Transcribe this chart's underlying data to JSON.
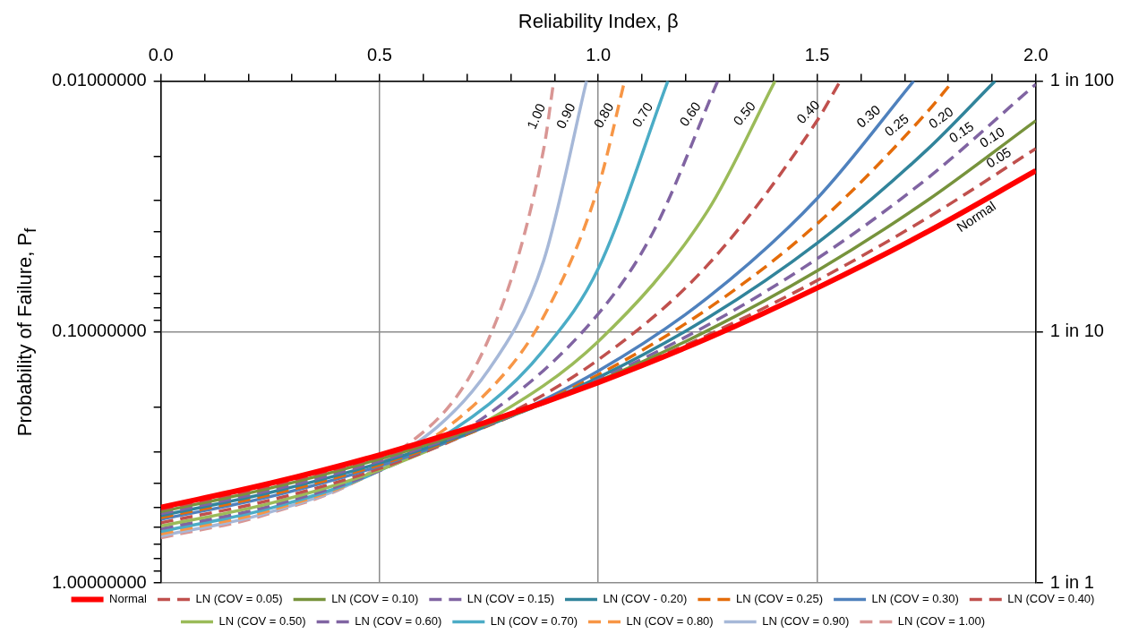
{
  "chart_data": {
    "type": "line",
    "xlabel": "Reliability Index, β",
    "ylabel": "Probability of Failure, P$_{f}$",
    "xlim": [
      0,
      2
    ],
    "xticks": [
      {
        "value": 0,
        "label": "0.0"
      },
      {
        "value": 0.1,
        "label": null
      },
      {
        "value": 0.2,
        "label": null
      },
      {
        "value": 0.3,
        "label": null
      },
      {
        "value": 0.4,
        "label": null
      },
      {
        "value": 0.5,
        "label": "0.5"
      },
      {
        "value": 0.6,
        "label": null
      },
      {
        "value": 0.7,
        "label": null
      },
      {
        "value": 0.8,
        "label": null
      },
      {
        "value": 0.9,
        "label": null
      },
      {
        "value": 1,
        "label": "1.0"
      },
      {
        "value": 1.1,
        "label": null
      },
      {
        "value": 1.2,
        "label": null
      },
      {
        "value": 1.3,
        "label": null
      },
      {
        "value": 1.4,
        "label": null
      },
      {
        "value": 1.5,
        "label": "1.5"
      },
      {
        "value": 1.6,
        "label": null
      },
      {
        "value": 1.7,
        "label": null
      },
      {
        "value": 1.8,
        "label": null
      },
      {
        "value": 1.9,
        "label": null
      },
      {
        "value": 2,
        "label": "2.0"
      }
    ],
    "ylim": [
      1,
      0.01
    ],
    "yticks": [
      {
        "value": 0.01,
        "label": "0.01000000"
      },
      {
        "value": 0.02,
        "label": null
      },
      {
        "value": 0.03,
        "label": null
      },
      {
        "value": 0.04,
        "label": null
      },
      {
        "value": 0.05,
        "label": null
      },
      {
        "value": 0.06,
        "label": null
      },
      {
        "value": 0.07,
        "label": null
      },
      {
        "value": 0.08,
        "label": null
      },
      {
        "value": 0.09,
        "label": null
      },
      {
        "value": 0.1,
        "label": "0.10000000"
      },
      {
        "value": 0.2,
        "label": null
      },
      {
        "value": 0.3,
        "label": null
      },
      {
        "value": 0.4,
        "label": null
      },
      {
        "value": 0.5,
        "label": null
      },
      {
        "value": 0.6,
        "label": null
      },
      {
        "value": 0.7,
        "label": null
      },
      {
        "value": 0.8,
        "label": null
      },
      {
        "value": 0.9,
        "label": null
      },
      {
        "value": 1,
        "label": "1.00000000"
      }
    ],
    "y2_categories": [
      "1 in 100",
      "1 in 10",
      "1 in 1"
    ],
    "log": "y",
    "grid": true,
    "legend": "bottom",
    "marker": "none",
    "annotations": [
      {
        "text": "1.00",
        "x": 0.884,
        "y": 0.0145
      },
      {
        "text": "0.90",
        "x": 0.951,
        "y": 0.0145
      },
      {
        "text": "0.80",
        "x": 1.037,
        "y": 0.0145
      },
      {
        "text": "0.70",
        "x": 1.125,
        "y": 0.0145
      },
      {
        "text": "0.60",
        "x": 1.233,
        "y": 0.0145
      },
      {
        "text": "0.50",
        "x": 1.356,
        "y": 0.0145
      },
      {
        "text": "0.40",
        "x": 1.5,
        "y": 0.0144
      },
      {
        "text": "0.30",
        "x": 1.636,
        "y": 0.0151
      },
      {
        "text": "0.25",
        "x": 1.7,
        "y": 0.0164
      },
      {
        "text": "0.20",
        "x": 1.8,
        "y": 0.0154
      },
      {
        "text": "0.15",
        "x": 1.846,
        "y": 0.0176
      },
      {
        "text": "0.10",
        "x": 1.915,
        "y": 0.0185
      },
      {
        "text": "0.05",
        "x": 1.93,
        "y": 0.0223
      },
      {
        "text": "Normal",
        "x": 1.85,
        "y": 0.032
      }
    ],
    "series": [
      {
        "name": "Normal",
        "color": "#ff0000",
        "line_style": "solid",
        "x": [
          0,
          0.25,
          0.5,
          0.75,
          1,
          1.25,
          1.5,
          1.75,
          2
        ],
        "values": [
          0.5,
          0.401,
          0.309,
          0.227,
          0.159,
          0.106,
          0.0668,
          0.0401,
          0.0228
        ]
      },
      {
        "name": "LN (COV = 0.05)",
        "color": "#c0504d",
        "line_style": "dashed",
        "x": [
          0,
          0.25,
          0.5,
          0.75,
          1,
          1.25,
          1.5,
          1.75,
          2
        ],
        "values": [
          0.51,
          0.41,
          0.315,
          0.23,
          0.158,
          0.103,
          0.0624,
          0.0353,
          0.0186
        ]
      },
      {
        "name": "LN (COV = 0.10)",
        "color": "#77933c",
        "line_style": "solid",
        "x": [
          0,
          0.25,
          0.5,
          0.75,
          1,
          1.25,
          1.5,
          1.75,
          2
        ],
        "values": [
          0.52,
          0.419,
          0.321,
          0.232,
          0.157,
          0.0987,
          0.0571,
          0.0301,
          0.0144
        ]
      },
      {
        "name": "LN (COV = 0.15)",
        "color": "#8064a2",
        "line_style": "dashed",
        "x": [
          0,
          0.25,
          0.5,
          0.75,
          1,
          1.25,
          1.5,
          1.75,
          2
        ],
        "values": [
          0.53,
          0.428,
          0.327,
          0.234,
          0.155,
          0.0939,
          0.0511,
          0.0246,
          0.0103
        ]
      },
      {
        "name": "LN (COV - 0.20)",
        "color": "#31849b",
        "line_style": "solid",
        "x": [
          0,
          0.25,
          0.5,
          0.75,
          1,
          1.25,
          1.5,
          1.75,
          1.907
        ],
        "values": [
          0.539,
          0.436,
          0.333,
          0.235,
          0.152,
          0.0879,
          0.0443,
          0.0189,
          0.01
        ]
      },
      {
        "name": "LN (COV = 0.25)",
        "color": "#e46c0a",
        "line_style": "dashed",
        "x": [
          0,
          0.25,
          0.5,
          0.75,
          1,
          1.25,
          1.5,
          1.75,
          1.811
        ],
        "values": [
          0.549,
          0.445,
          0.338,
          0.236,
          0.148,
          0.0809,
          0.0371,
          0.0134,
          0.01
        ]
      },
      {
        "name": "LN (COV = 0.30)",
        "color": "#4f81bd",
        "line_style": "solid",
        "x": [
          0,
          0.25,
          0.5,
          0.75,
          1,
          1.25,
          1.5,
          1.721
        ],
        "values": [
          0.558,
          0.453,
          0.342,
          0.235,
          0.143,
          0.073,
          0.0294,
          0.01
        ]
      },
      {
        "name": "LN (COV = 0.40)",
        "color": "#c0504d",
        "line_style": "dashed",
        "x": [
          0,
          0.25,
          0.5,
          0.75,
          1,
          1.25,
          1.5,
          1.553
        ],
        "values": [
          0.576,
          0.468,
          0.35,
          0.232,
          0.129,
          0.0541,
          0.0144,
          0.01
        ]
      },
      {
        "name": "LN (COV = 0.50)",
        "color": "#9bbb59",
        "line_style": "solid",
        "x": [
          0,
          0.25,
          0.5,
          0.75,
          1,
          1.25,
          1.404
        ],
        "values": [
          0.593,
          0.482,
          0.355,
          0.224,
          0.109,
          0.0329,
          0.01
        ]
      },
      {
        "name": "LN (COV = 0.60)",
        "color": "#8064a2",
        "line_style": "dashed",
        "x": [
          0,
          0.25,
          0.5,
          0.75,
          1,
          1.125,
          1.273
        ],
        "values": [
          0.609,
          0.494,
          0.357,
          0.212,
          0.0846,
          0.0401,
          0.01
        ]
      },
      {
        "name": "LN (COV = 0.70)",
        "color": "#4bacc6",
        "line_style": "solid",
        "x": [
          0,
          0.25,
          0.5,
          0.75,
          0.875,
          1,
          1.159
        ],
        "values": [
          0.624,
          0.504,
          0.357,
          0.194,
          0.118,
          0.0558,
          0.01
        ]
      },
      {
        "name": "LN (COV = 0.80)",
        "color": "#f79646",
        "line_style": "dashed",
        "x": [
          0,
          0.25,
          0.5,
          0.75,
          0.875,
          1,
          1.06
        ],
        "values": [
          0.638,
          0.514,
          0.354,
          0.171,
          0.0869,
          0.0264,
          0.01
        ]
      },
      {
        "name": "LN (COV = 0.90)",
        "color": "#a6b8d8",
        "line_style": "solid",
        "x": [
          0,
          0.25,
          0.5,
          0.75,
          0.875,
          0.973
        ],
        "values": [
          0.65,
          0.522,
          0.348,
          0.141,
          0.052,
          0.01
        ]
      },
      {
        "name": "LN (COV = 1.00)",
        "color": "#d99694",
        "line_style": "dashed",
        "x": [
          0,
          0.25,
          0.5,
          0.75,
          0.875,
          0.898
        ],
        "values": [
          0.661,
          0.528,
          0.339,
          0.106,
          0.0187,
          0.01
        ]
      }
    ]
  }
}
